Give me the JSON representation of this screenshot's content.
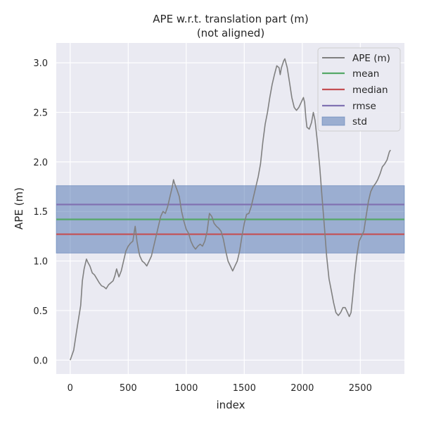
{
  "chart_data": {
    "type": "line",
    "title": "APE w.r.t. translation part (m)",
    "subtitle": "(not aligned)",
    "xlabel": "index",
    "ylabel": "APE (m)",
    "xlim": [
      -120,
      2880
    ],
    "ylim": [
      -0.14,
      3.2
    ],
    "xticks": [
      0,
      500,
      1000,
      1500,
      2000,
      2500
    ],
    "yticks": [
      0.0,
      0.5,
      1.0,
      1.5,
      2.0,
      2.5,
      3.0
    ],
    "xtick_labels": [
      "0",
      "500",
      "1000",
      "1500",
      "2000",
      "2500"
    ],
    "ytick_labels": [
      "0.0",
      "0.5",
      "1.0",
      "1.5",
      "2.0",
      "2.5",
      "3.0"
    ],
    "grid": true,
    "legend_position": "top-right",
    "legend": [
      "APE (m)",
      "mean",
      "median",
      "rmse",
      "std"
    ],
    "series": [
      {
        "name": "APE (m)",
        "color": "#808080",
        "points": [
          [
            0,
            0.0
          ],
          [
            15,
            0.05
          ],
          [
            30,
            0.1
          ],
          [
            50,
            0.25
          ],
          [
            70,
            0.4
          ],
          [
            90,
            0.55
          ],
          [
            105,
            0.8
          ],
          [
            120,
            0.92
          ],
          [
            140,
            1.02
          ],
          [
            155,
            0.98
          ],
          [
            170,
            0.95
          ],
          [
            190,
            0.88
          ],
          [
            210,
            0.86
          ],
          [
            230,
            0.82
          ],
          [
            250,
            0.78
          ],
          [
            270,
            0.75
          ],
          [
            290,
            0.74
          ],
          [
            310,
            0.72
          ],
          [
            330,
            0.76
          ],
          [
            350,
            0.78
          ],
          [
            370,
            0.8
          ],
          [
            385,
            0.85
          ],
          [
            400,
            0.92
          ],
          [
            410,
            0.88
          ],
          [
            420,
            0.84
          ],
          [
            440,
            0.9
          ],
          [
            460,
            1.0
          ],
          [
            480,
            1.1
          ],
          [
            500,
            1.15
          ],
          [
            520,
            1.18
          ],
          [
            540,
            1.2
          ],
          [
            550,
            1.28
          ],
          [
            560,
            1.35
          ],
          [
            575,
            1.2
          ],
          [
            590,
            1.1
          ],
          [
            600,
            1.05
          ],
          [
            620,
            1.0
          ],
          [
            640,
            0.98
          ],
          [
            660,
            0.95
          ],
          [
            680,
            1.0
          ],
          [
            700,
            1.05
          ],
          [
            720,
            1.15
          ],
          [
            740,
            1.25
          ],
          [
            760,
            1.35
          ],
          [
            780,
            1.45
          ],
          [
            800,
            1.5
          ],
          [
            820,
            1.48
          ],
          [
            840,
            1.55
          ],
          [
            860,
            1.65
          ],
          [
            880,
            1.75
          ],
          [
            890,
            1.82
          ],
          [
            900,
            1.78
          ],
          [
            920,
            1.72
          ],
          [
            940,
            1.65
          ],
          [
            960,
            1.5
          ],
          [
            980,
            1.4
          ],
          [
            1000,
            1.32
          ],
          [
            1020,
            1.28
          ],
          [
            1040,
            1.2
          ],
          [
            1060,
            1.15
          ],
          [
            1080,
            1.12
          ],
          [
            1100,
            1.15
          ],
          [
            1120,
            1.17
          ],
          [
            1140,
            1.15
          ],
          [
            1160,
            1.2
          ],
          [
            1180,
            1.3
          ],
          [
            1200,
            1.48
          ],
          [
            1220,
            1.45
          ],
          [
            1240,
            1.38
          ],
          [
            1260,
            1.35
          ],
          [
            1280,
            1.33
          ],
          [
            1300,
            1.3
          ],
          [
            1320,
            1.22
          ],
          [
            1340,
            1.1
          ],
          [
            1360,
            1.0
          ],
          [
            1380,
            0.95
          ],
          [
            1400,
            0.9
          ],
          [
            1420,
            0.95
          ],
          [
            1440,
            1.0
          ],
          [
            1460,
            1.1
          ],
          [
            1480,
            1.25
          ],
          [
            1500,
            1.38
          ],
          [
            1520,
            1.47
          ],
          [
            1540,
            1.48
          ],
          [
            1560,
            1.55
          ],
          [
            1580,
            1.65
          ],
          [
            1600,
            1.75
          ],
          [
            1620,
            1.85
          ],
          [
            1640,
            1.98
          ],
          [
            1660,
            2.2
          ],
          [
            1680,
            2.38
          ],
          [
            1700,
            2.5
          ],
          [
            1720,
            2.65
          ],
          [
            1740,
            2.78
          ],
          [
            1760,
            2.88
          ],
          [
            1780,
            2.97
          ],
          [
            1800,
            2.95
          ],
          [
            1810,
            2.88
          ],
          [
            1820,
            2.95
          ],
          [
            1840,
            3.02
          ],
          [
            1850,
            3.04
          ],
          [
            1870,
            2.95
          ],
          [
            1890,
            2.8
          ],
          [
            1910,
            2.65
          ],
          [
            1930,
            2.55
          ],
          [
            1950,
            2.52
          ],
          [
            1970,
            2.55
          ],
          [
            1990,
            2.6
          ],
          [
            2010,
            2.65
          ],
          [
            2020,
            2.6
          ],
          [
            2030,
            2.45
          ],
          [
            2040,
            2.35
          ],
          [
            2060,
            2.33
          ],
          [
            2080,
            2.4
          ],
          [
            2095,
            2.5
          ],
          [
            2110,
            2.42
          ],
          [
            2130,
            2.2
          ],
          [
            2150,
            1.95
          ],
          [
            2170,
            1.65
          ],
          [
            2190,
            1.35
          ],
          [
            2210,
            1.05
          ],
          [
            2230,
            0.82
          ],
          [
            2250,
            0.7
          ],
          [
            2270,
            0.58
          ],
          [
            2290,
            0.48
          ],
          [
            2310,
            0.45
          ],
          [
            2330,
            0.48
          ],
          [
            2350,
            0.53
          ],
          [
            2370,
            0.53
          ],
          [
            2390,
            0.48
          ],
          [
            2405,
            0.44
          ],
          [
            2420,
            0.48
          ],
          [
            2435,
            0.65
          ],
          [
            2450,
            0.85
          ],
          [
            2470,
            1.05
          ],
          [
            2490,
            1.2
          ],
          [
            2510,
            1.25
          ],
          [
            2530,
            1.3
          ],
          [
            2550,
            1.45
          ],
          [
            2570,
            1.6
          ],
          [
            2590,
            1.7
          ],
          [
            2610,
            1.75
          ],
          [
            2630,
            1.78
          ],
          [
            2650,
            1.82
          ],
          [
            2670,
            1.88
          ],
          [
            2690,
            1.95
          ],
          [
            2710,
            1.98
          ],
          [
            2730,
            2.02
          ],
          [
            2750,
            2.1
          ],
          [
            2760,
            2.12
          ]
        ]
      },
      {
        "name": "mean",
        "color": "#55a868",
        "value": 1.42
      },
      {
        "name": "median",
        "color": "#c44e52",
        "value": 1.27
      },
      {
        "name": "rmse",
        "color": "#8172b2",
        "value": 1.57
      },
      {
        "name": "std",
        "color": "#4c72b0",
        "range": [
          1.08,
          1.76
        ]
      }
    ]
  }
}
